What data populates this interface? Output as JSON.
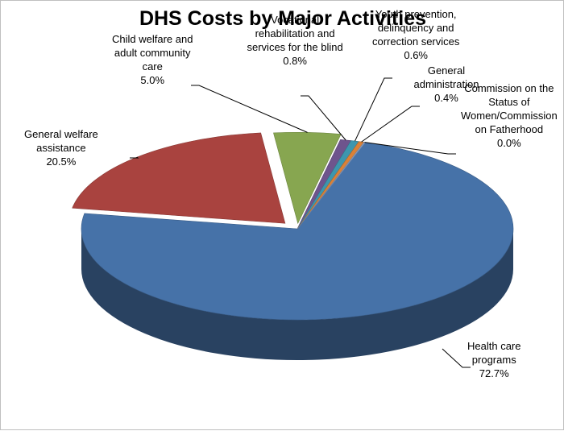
{
  "chart_data": {
    "type": "pie",
    "title": "DHS Costs by Major Activities",
    "slices": [
      {
        "name_lines": [
          "Health care",
          "programs"
        ],
        "value_label": "72.7%",
        "value": 72.7,
        "color": "#4672a8"
      },
      {
        "name_lines": [
          "General welfare",
          "assistance"
        ],
        "value_label": "20.5%",
        "value": 20.5,
        "color": "#a9433f"
      },
      {
        "name_lines": [
          "Child welfare and",
          "adult community",
          "care"
        ],
        "value_label": "5.0%",
        "value": 5.0,
        "color": "#87a650"
      },
      {
        "name_lines": [
          "Vocational",
          "rehabilitation and",
          "services for the blind"
        ],
        "value_label": "0.8%",
        "value": 0.8,
        "color": "#6e548d"
      },
      {
        "name_lines": [
          "Youth prevention,",
          "delinquency and",
          "correction services"
        ],
        "value_label": "0.6%",
        "value": 0.6,
        "color": "#3d96ae"
      },
      {
        "name_lines": [
          "General",
          "administration"
        ],
        "value_label": "0.4%",
        "value": 0.4,
        "color": "#da8137"
      },
      {
        "name_lines": [
          "Commission on the",
          "Status of",
          "Women/Commission",
          "on Fatherhood"
        ],
        "value_label": "0.0%",
        "value": 0.0,
        "color": "#8ea5cb"
      }
    ]
  }
}
